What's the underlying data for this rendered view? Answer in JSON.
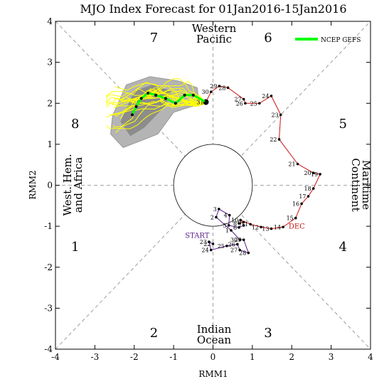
{
  "chart_data": {
    "type": "scatter",
    "title": "MJO Index Forecast for 01Jan2016-15Jan2016",
    "xlabel": "RMM1",
    "ylabel": "RMM2",
    "xlim": [
      -4,
      4
    ],
    "ylim": [
      -4,
      4
    ],
    "xticks": [
      "-4",
      "-3",
      "-2",
      "-1",
      "0",
      "1",
      "2",
      "3",
      "4"
    ],
    "yticks": [
      "-4",
      "-3",
      "-2",
      "-1",
      "0",
      "1",
      "2",
      "3",
      "4"
    ],
    "phases": [
      {
        "label": "1",
        "x": -3.5,
        "y": -1.5
      },
      {
        "label": "2",
        "x": -1.5,
        "y": -3.6
      },
      {
        "label": "3",
        "x": 1.4,
        "y": -3.6
      },
      {
        "label": "4",
        "x": 3.3,
        "y": -1.5
      },
      {
        "label": "5",
        "x": 3.3,
        "y": 1.5
      },
      {
        "label": "6",
        "x": 1.4,
        "y": 3.6
      },
      {
        "label": "7",
        "x": -1.5,
        "y": 3.6
      },
      {
        "label": "8",
        "x": -3.5,
        "y": 1.5
      }
    ],
    "regions": {
      "top": [
        "Western",
        "Pacific"
      ],
      "bottom": [
        "Indian",
        "Ocean"
      ],
      "left": [
        "West. Hem.",
        "and Africa"
      ],
      "right": [
        "Maritime",
        "Continent"
      ]
    },
    "legend": {
      "label": "NCEP GEFS",
      "color": "#00ff00"
    },
    "observed_nov": {
      "color": "#5b1c8c",
      "label": "START",
      "points": [
        {
          "d": "22",
          "x": 0.0,
          "y": -1.43
        },
        {
          "d": "23",
          "x": -0.1,
          "y": -1.38
        },
        {
          "d": "24",
          "x": -0.05,
          "y": -1.58
        },
        {
          "d": "25",
          "x": 0.35,
          "y": -1.48
        },
        {
          "d": "26",
          "x": 0.62,
          "y": -1.44
        },
        {
          "d": "27",
          "x": 0.68,
          "y": -1.58
        },
        {
          "d": "28",
          "x": 0.9,
          "y": -1.65
        },
        {
          "d": "29",
          "x": 0.78,
          "y": -1.33
        },
        {
          "d": "30",
          "x": 0.68,
          "y": -1.33
        },
        {
          "d": "1",
          "x": 0.46,
          "y": -1.1
        },
        {
          "d": "2",
          "x": 0.08,
          "y": -0.78
        },
        {
          "d": "3",
          "x": 0.15,
          "y": -0.58
        },
        {
          "d": "4",
          "x": 0.42,
          "y": -0.73
        },
        {
          "d": "5",
          "x": 0.4,
          "y": -0.98
        },
        {
          "d": "6",
          "x": 0.66,
          "y": -1.03
        },
        {
          "d": "7",
          "x": 0.78,
          "y": -0.98
        }
      ]
    },
    "observed_dec": {
      "color": "#cc1111",
      "label": "DEC",
      "points": [
        {
          "d": "8",
          "x": 0.66,
          "y": -0.93
        },
        {
          "d": "9",
          "x": 0.78,
          "y": -0.9
        },
        {
          "d": "10",
          "x": 0.7,
          "y": -0.85
        },
        {
          "d": "11",
          "x": 0.95,
          "y": -0.95
        },
        {
          "d": "12",
          "x": 1.22,
          "y": -1.02
        },
        {
          "d": "13",
          "x": 1.48,
          "y": -1.06
        },
        {
          "d": "14",
          "x": 1.78,
          "y": -1.02
        },
        {
          "d": "15",
          "x": 2.1,
          "y": -0.8
        },
        {
          "d": "16",
          "x": 2.25,
          "y": -0.45
        },
        {
          "d": "17",
          "x": 2.42,
          "y": -0.27
        },
        {
          "d": "18",
          "x": 2.55,
          "y": -0.08
        },
        {
          "d": "19",
          "x": 2.72,
          "y": 0.27
        },
        {
          "d": "20",
          "x": 2.55,
          "y": 0.3
        },
        {
          "d": "21",
          "x": 2.15,
          "y": 0.52
        },
        {
          "d": "22",
          "x": 1.68,
          "y": 1.12
        },
        {
          "d": "23",
          "x": 1.72,
          "y": 1.72
        },
        {
          "d": "24",
          "x": 1.48,
          "y": 2.18
        },
        {
          "d": "25",
          "x": 1.18,
          "y": 2.0
        },
        {
          "d": "26",
          "x": 0.82,
          "y": 2.0
        },
        {
          "d": "27",
          "x": 0.78,
          "y": 2.1
        },
        {
          "d": "28",
          "x": 0.38,
          "y": 2.38
        },
        {
          "d": "29",
          "x": 0.16,
          "y": 2.42
        },
        {
          "d": "30",
          "x": -0.05,
          "y": 2.28
        },
        {
          "d": "31",
          "x": -0.18,
          "y": 2.03
        }
      ]
    },
    "forecast_mean": [
      {
        "x": -0.18,
        "y": 2.03
      },
      {
        "x": -0.5,
        "y": 2.2
      },
      {
        "x": -0.72,
        "y": 2.2
      },
      {
        "x": -0.95,
        "y": 2.0
      },
      {
        "x": -1.2,
        "y": 2.12
      },
      {
        "x": -1.45,
        "y": 2.2
      },
      {
        "x": -1.65,
        "y": 2.25
      },
      {
        "x": -1.82,
        "y": 2.12
      },
      {
        "x": -1.95,
        "y": 1.92
      },
      {
        "x": -2.05,
        "y": 1.72
      }
    ]
  }
}
